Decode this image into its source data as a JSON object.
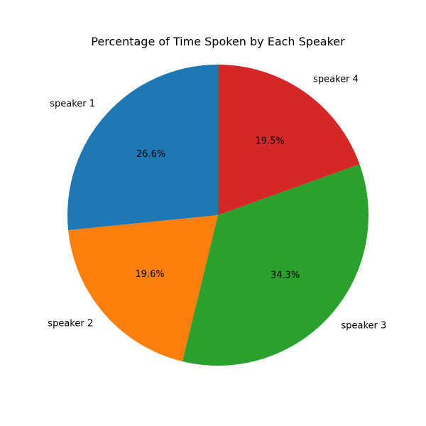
{
  "chart_data": {
    "type": "pie",
    "title": "Percentage of Time Spoken by Each Speaker",
    "start_angle_deg": 90,
    "direction": "counterclockwise",
    "labels": [
      "speaker 1",
      "speaker 2",
      "speaker 3",
      "speaker 4"
    ],
    "values": [
      26.6,
      19.6,
      34.3,
      19.5
    ],
    "value_labels": [
      "26.6%",
      "19.6%",
      "34.3%",
      "19.5%"
    ],
    "colors": [
      "#1f77b4",
      "#ff7f0e",
      "#2ca02c",
      "#d62728"
    ]
  }
}
